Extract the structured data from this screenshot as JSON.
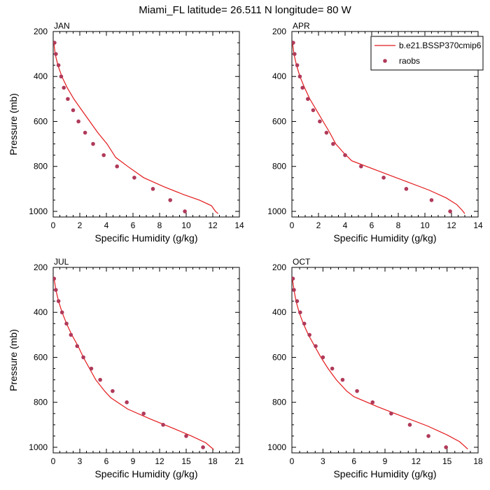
{
  "figure_title": "Miami_FL  latitude= 26.511 N longitude= 80 W",
  "colors": {
    "model_line": "#e31a1c",
    "raobs_marker": "#b03a5a",
    "axes": "#000000"
  },
  "chart_data": [
    {
      "type": "line",
      "panel_label": "JAN",
      "xlabel": "Specific Humidity (g/kg)",
      "ylabel": "Pressure (mb)",
      "xlim": [
        0,
        14
      ],
      "ylim": [
        1025,
        200
      ],
      "y_reversed": true,
      "xticks": [
        "0",
        "2",
        "4",
        "6",
        "8",
        "10",
        "12",
        "14"
      ],
      "yticks": [
        "200",
        "400",
        "600",
        "800",
        "1000"
      ],
      "legend": null,
      "series": [
        {
          "name": "b.e21.BSSP370cmip6",
          "kind": "line",
          "x": [
            0.05,
            0.15,
            0.35,
            0.65,
            1.05,
            1.55,
            2.15,
            2.75,
            3.35,
            4.05,
            4.7,
            5.6,
            6.8,
            8.3,
            9.8,
            11.0,
            11.9,
            12.2,
            12.4
          ],
          "y": [
            250,
            300,
            350,
            400,
            450,
            500,
            550,
            600,
            650,
            700,
            760,
            800,
            850,
            890,
            925,
            950,
            975,
            1000,
            1010
          ]
        },
        {
          "name": "raobs",
          "kind": "marker",
          "x": [
            0.1,
            0.2,
            0.4,
            0.6,
            0.8,
            1.1,
            1.5,
            1.9,
            2.4,
            3.0,
            3.8,
            4.8,
            6.1,
            7.5,
            8.8,
            9.9
          ],
          "y": [
            250,
            300,
            350,
            400,
            450,
            500,
            550,
            600,
            650,
            700,
            750,
            800,
            850,
            900,
            950,
            1000
          ]
        }
      ]
    },
    {
      "type": "line",
      "panel_label": "APR",
      "xlabel": "Specific Humidity (g/kg)",
      "ylabel": "",
      "xlim": [
        0,
        14
      ],
      "ylim": [
        1025,
        200
      ],
      "y_reversed": true,
      "xticks": [
        "0",
        "2",
        "4",
        "6",
        "8",
        "10",
        "12",
        "14"
      ],
      "yticks": [
        "200",
        "400",
        "600",
        "800",
        "1000"
      ],
      "legend": {
        "position": "top-right",
        "line_label": "b.e21.BSSP370cmip6",
        "marker_label": "raobs"
      },
      "series": [
        {
          "name": "b.e21.BSSP370cmip6",
          "kind": "line",
          "x": [
            0.05,
            0.15,
            0.35,
            0.6,
            0.95,
            1.35,
            1.85,
            2.35,
            2.85,
            3.3,
            3.9,
            4.5,
            6.5,
            8.5,
            10.3,
            11.6,
            12.4,
            12.8,
            13.0
          ],
          "y": [
            250,
            300,
            350,
            400,
            450,
            500,
            550,
            600,
            650,
            700,
            740,
            775,
            820,
            865,
            905,
            940,
            970,
            995,
            1010
          ]
        },
        {
          "name": "raobs",
          "kind": "marker",
          "x": [
            0.1,
            0.2,
            0.4,
            0.6,
            0.8,
            1.2,
            1.6,
            2.1,
            2.6,
            3.1,
            4.0,
            5.2,
            6.9,
            8.6,
            10.5,
            11.9
          ],
          "y": [
            250,
            300,
            350,
            400,
            450,
            500,
            550,
            600,
            650,
            700,
            750,
            800,
            850,
            900,
            950,
            1000
          ]
        }
      ]
    },
    {
      "type": "line",
      "panel_label": "JUL",
      "xlabel": "Specific Humidity (g/kg)",
      "ylabel": "Pressure (mb)",
      "xlim": [
        0,
        21
      ],
      "ylim": [
        1025,
        200
      ],
      "y_reversed": true,
      "xticks": [
        "0",
        "3",
        "6",
        "9",
        "12",
        "15",
        "18",
        "21"
      ],
      "yticks": [
        "200",
        "400",
        "600",
        "800",
        "1000"
      ],
      "legend": null,
      "series": [
        {
          "name": "b.e21.BSSP370cmip6",
          "kind": "line",
          "x": [
            0.1,
            0.3,
            0.6,
            1.0,
            1.5,
            2.1,
            2.8,
            3.4,
            4.1,
            4.8,
            5.8,
            6.5,
            8.4,
            11.0,
            13.5,
            15.6,
            17.2,
            17.8,
            18.1
          ],
          "y": [
            250,
            300,
            350,
            400,
            450,
            500,
            550,
            600,
            650,
            700,
            750,
            780,
            830,
            875,
            915,
            950,
            980,
            1000,
            1010
          ]
        },
        {
          "name": "raobs",
          "kind": "marker",
          "x": [
            0.1,
            0.3,
            0.6,
            1.0,
            1.5,
            2.0,
            2.7,
            3.4,
            4.3,
            5.3,
            6.7,
            8.3,
            10.2,
            12.4,
            15.0,
            16.9
          ],
          "y": [
            250,
            300,
            350,
            400,
            450,
            500,
            550,
            600,
            650,
            700,
            750,
            800,
            850,
            900,
            950,
            1000
          ]
        }
      ]
    },
    {
      "type": "line",
      "panel_label": "OCT",
      "xlabel": "Specific Humidity (g/kg)",
      "ylabel": "",
      "xlim": [
        0,
        18
      ],
      "ylim": [
        1025,
        200
      ],
      "y_reversed": true,
      "xticks": [
        "0",
        "3",
        "6",
        "9",
        "12",
        "15",
        "18"
      ],
      "yticks": [
        "200",
        "400",
        "600",
        "800",
        "1000"
      ],
      "legend": null,
      "series": [
        {
          "name": "b.e21.BSSP370cmip6",
          "kind": "line",
          "x": [
            0.05,
            0.2,
            0.4,
            0.7,
            1.1,
            1.6,
            2.2,
            2.8,
            3.5,
            4.3,
            5.3,
            6.0,
            8.3,
            10.8,
            13.1,
            15.0,
            16.2,
            16.7,
            17.0
          ],
          "y": [
            250,
            300,
            350,
            400,
            450,
            500,
            550,
            600,
            650,
            700,
            750,
            775,
            820,
            865,
            905,
            945,
            975,
            995,
            1008
          ]
        },
        {
          "name": "raobs",
          "kind": "marker",
          "x": [
            0.1,
            0.2,
            0.5,
            0.8,
            1.2,
            1.7,
            2.3,
            3.0,
            3.9,
            4.9,
            6.3,
            7.8,
            9.6,
            11.4,
            13.2,
            14.9
          ],
          "y": [
            250,
            300,
            350,
            400,
            450,
            500,
            550,
            600,
            650,
            700,
            750,
            800,
            850,
            900,
            950,
            1000
          ]
        }
      ]
    }
  ]
}
